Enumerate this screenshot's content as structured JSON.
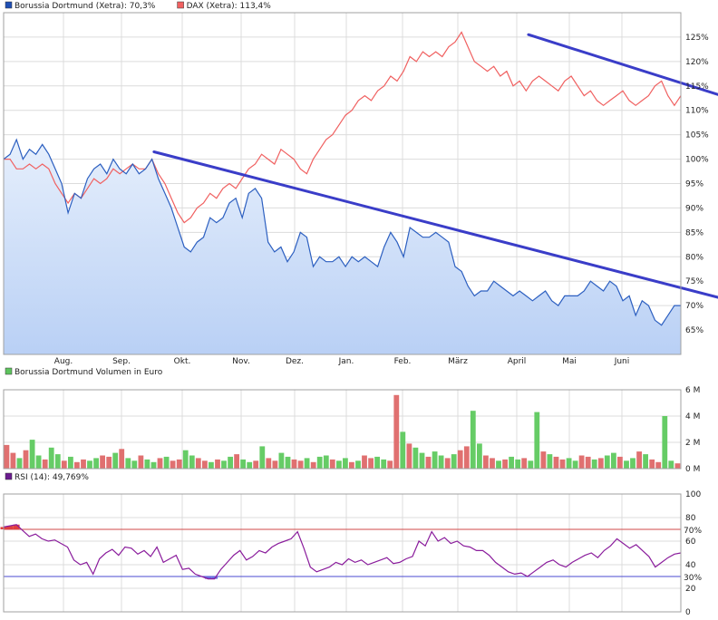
{
  "chart_data": [
    {
      "type": "line",
      "legend": [
        {
          "label": "Borussia Dortmund (Xetra): 70,3%",
          "color": "#1f4fb4"
        },
        {
          "label": "DAX (Xetra): 113,4%",
          "color": "#f06060"
        }
      ],
      "x_ticks": [
        "Aug.",
        "Sep.",
        "Okt.",
        "Nov.",
        "Dez.",
        "Jan.",
        "Feb.",
        "März",
        "April",
        "Mai",
        "Juni"
      ],
      "y_ticks": [
        "65%",
        "70%",
        "75%",
        "80%",
        "85%",
        "90%",
        "95%",
        "100%",
        "105%",
        "110%",
        "115%",
        "120%",
        "125%"
      ],
      "ylim": [
        60,
        130
      ],
      "series": [
        {
          "name": "Borussia Dortmund (Xetra)",
          "color": "#2c5fc0",
          "fill": "#c9dcf7",
          "values": [
            100,
            101,
            104,
            100,
            102,
            101,
            103,
            101,
            98,
            95,
            89,
            93,
            92,
            96,
            98,
            99,
            97,
            100,
            98,
            97,
            99,
            97,
            98,
            100,
            96,
            93,
            90,
            86,
            82,
            81,
            83,
            84,
            88,
            87,
            88,
            91,
            92,
            88,
            93,
            94,
            92,
            83,
            81,
            82,
            79,
            81,
            85,
            84,
            78,
            80,
            79,
            79,
            80,
            78,
            80,
            79,
            80,
            79,
            78,
            82,
            85,
            83,
            80,
            86,
            85,
            84,
            84,
            85,
            84,
            83,
            78,
            77,
            74,
            72,
            73,
            73,
            75,
            74,
            73,
            72,
            73,
            72,
            71,
            72,
            73,
            71,
            70,
            72,
            72,
            72,
            73,
            75,
            74,
            73,
            75,
            74,
            71,
            72,
            68,
            71,
            70,
            67,
            66,
            68,
            70,
            70
          ]
        },
        {
          "name": "DAX (Xetra)",
          "color": "#f06060",
          "values": [
            100,
            100,
            98,
            98,
            99,
            98,
            99,
            98,
            95,
            93,
            91,
            93,
            92,
            94,
            96,
            95,
            96,
            98,
            97,
            98,
            99,
            98,
            98,
            100,
            97,
            95,
            92,
            89,
            87,
            88,
            90,
            91,
            93,
            92,
            94,
            95,
            94,
            96,
            98,
            99,
            101,
            100,
            99,
            102,
            101,
            100,
            98,
            97,
            100,
            102,
            104,
            105,
            107,
            109,
            110,
            112,
            113,
            112,
            114,
            115,
            117,
            116,
            118,
            121,
            120,
            122,
            121,
            122,
            121,
            123,
            124,
            126,
            123,
            120,
            119,
            118,
            119,
            117,
            118,
            115,
            116,
            114,
            116,
            117,
            116,
            115,
            114,
            116,
            117,
            115,
            113,
            114,
            112,
            111,
            112,
            113,
            114,
            112,
            111,
            112,
            113,
            115,
            116,
            113,
            111,
            113
          ]
        },
        {
          "name": "trend-1",
          "color": "#3a3dc8",
          "line_only": true,
          "values": []
        },
        {
          "name": "trend-2",
          "color": "#3a3dc8",
          "line_only": true,
          "values": []
        }
      ],
      "trendlines": [
        {
          "from": [
            0.222,
            101.5
          ],
          "to": [
            1.06,
            71.5
          ]
        },
        {
          "from": [
            0.775,
            125.5
          ],
          "to": [
            1.06,
            113
          ]
        }
      ]
    },
    {
      "type": "bar",
      "legend": [
        {
          "label": "Borussia Dortmund Volumen in Euro",
          "color": "#5ec45e"
        }
      ],
      "y_ticks": [
        "0 M",
        "2 M",
        "4 M",
        "6 M"
      ],
      "ylim": [
        0,
        6
      ],
      "up_color": "#66cc66",
      "down_color": "#e07070",
      "values": [
        1.8,
        1.2,
        0.8,
        1.4,
        2.2,
        1.0,
        0.7,
        1.6,
        1.1,
        0.6,
        0.9,
        0.5,
        0.7,
        0.6,
        0.8,
        1.0,
        0.9,
        1.2,
        1.5,
        0.8,
        0.6,
        1.0,
        0.7,
        0.5,
        0.8,
        0.9,
        0.6,
        0.7,
        1.4,
        1.0,
        0.8,
        0.6,
        0.5,
        0.7,
        0.6,
        0.9,
        1.1,
        0.7,
        0.5,
        0.6,
        1.7,
        0.8,
        0.6,
        1.2,
        0.9,
        0.7,
        0.6,
        0.8,
        0.5,
        0.9,
        1.0,
        0.7,
        0.6,
        0.8,
        0.5,
        0.6,
        1.0,
        0.8,
        0.9,
        0.7,
        0.6,
        5.6,
        2.8,
        1.9,
        1.6,
        1.2,
        0.9,
        1.3,
        1.0,
        0.8,
        1.1,
        1.4,
        1.7,
        4.4,
        1.9,
        1.0,
        0.8,
        0.6,
        0.7,
        0.9,
        0.7,
        0.8,
        0.6,
        4.3,
        1.3,
        1.1,
        0.9,
        0.7,
        0.8,
        0.6,
        1.0,
        0.9,
        0.7,
        0.8,
        1.0,
        1.2,
        0.9,
        0.6,
        0.8,
        1.3,
        1.1,
        0.7,
        0.5,
        4.0,
        0.6,
        0.4
      ]
    },
    {
      "type": "line",
      "legend": [
        {
          "label": "RSI (14): 49,769%",
          "color": "#6b1b8f"
        }
      ],
      "y_ticks": [
        "0",
        "20",
        "40",
        "60",
        "80",
        "100"
      ],
      "ylim": [
        0,
        100
      ],
      "levels": [
        {
          "value": 70,
          "label": "70%",
          "color": "#d24a4a"
        },
        {
          "value": 30,
          "label": "30%",
          "color": "#4a4ad2"
        }
      ],
      "series": [
        {
          "name": "RSI (14)",
          "color": "#8a1c9c",
          "values": [
            72,
            73,
            74,
            69,
            64,
            66,
            62,
            60,
            61,
            58,
            55,
            44,
            40,
            42,
            32,
            45,
            50,
            53,
            48,
            55,
            54,
            49,
            52,
            47,
            55,
            42,
            45,
            48,
            36,
            37,
            32,
            30,
            28,
            28,
            36,
            42,
            48,
            52,
            44,
            47,
            52,
            50,
            55,
            58,
            60,
            62,
            68,
            54,
            38,
            34,
            36,
            38,
            42,
            40,
            45,
            42,
            44,
            40,
            42,
            44,
            46,
            41,
            42,
            45,
            47,
            60,
            56,
            68,
            60,
            63,
            58,
            60,
            56,
            55,
            52,
            52,
            48,
            42,
            38,
            34,
            32,
            33,
            30,
            34,
            38,
            42,
            44,
            40,
            38,
            42,
            45,
            48,
            50,
            46,
            52,
            56,
            62,
            58,
            54,
            57,
            52,
            47,
            38,
            42,
            46,
            49,
            50
          ]
        }
      ]
    }
  ]
}
